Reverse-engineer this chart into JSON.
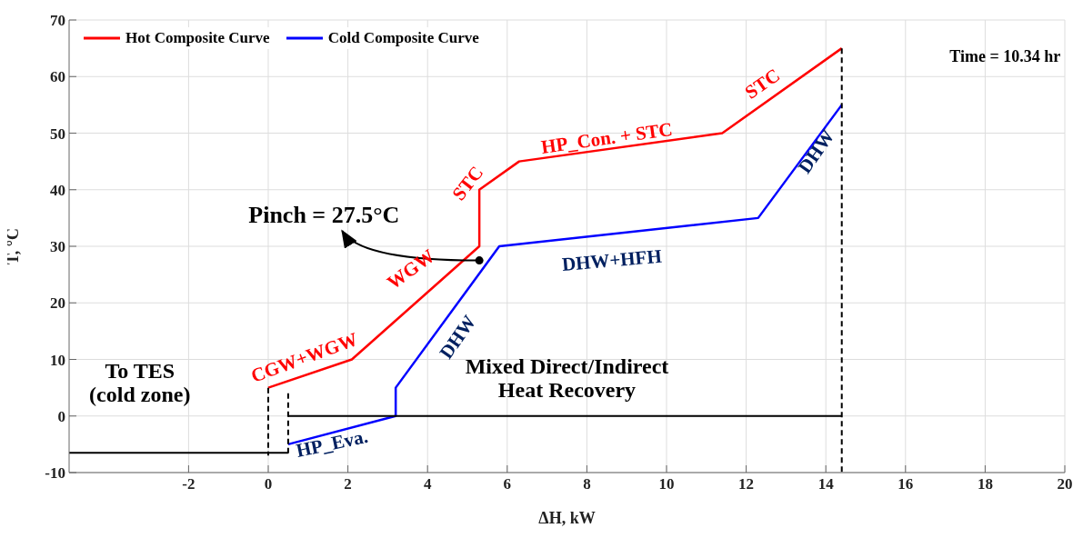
{
  "chart_data": {
    "type": "line",
    "xlabel": "ΔH, kW",
    "ylabel": "T, °C",
    "xlim": [
      -5,
      20
    ],
    "xticks": [
      -2,
      0,
      2,
      4,
      6,
      8,
      10,
      12,
      14,
      16,
      18,
      20
    ],
    "ylim": [
      -10,
      70
    ],
    "yticks": [
      -10,
      0,
      10,
      20,
      30,
      40,
      50,
      60,
      70
    ],
    "grid": true,
    "legend": "top left",
    "line_style": "solid",
    "series": [
      {
        "name": "Hot Composite Curve",
        "color": "#ff0000",
        "x": [
          0,
          2.1,
          5.3,
          5.3,
          6.3,
          11.4,
          14.4
        ],
        "values": [
          5,
          10,
          30,
          40,
          45,
          50,
          65
        ]
      },
      {
        "name": "Cold Composite Curve",
        "color": "#0000ff",
        "x": [
          0.5,
          3.2,
          3.2,
          5.8,
          12.3,
          14.4
        ],
        "values": [
          -5,
          0,
          5,
          30,
          35,
          55
        ]
      },
      {
        "color": "#000000",
        "line_style": "dashed",
        "x": [
          0,
          0
        ],
        "values": [
          5,
          -7
        ]
      },
      {
        "color": "#000000",
        "line_style": "dashed",
        "x": [
          0.5,
          0.5
        ],
        "values": [
          4,
          -7
        ]
      },
      {
        "color": "#000000",
        "line_style": "dashed",
        "x": [
          14.4,
          14.4
        ],
        "values": [
          65,
          -10
        ]
      },
      {
        "color": "#000000",
        "x": [
          0.5,
          14.4
        ],
        "values": [
          0,
          0
        ]
      },
      {
        "color": "#000000",
        "x": [
          -5,
          0.5
        ],
        "values": [
          -6.5,
          -6.5
        ]
      },
      {
        "type": "scatter",
        "marker": "circle",
        "color": "#000000",
        "x": [
          5.3
        ],
        "values": [
          27.5
        ]
      }
    ],
    "annotations": [
      "Pinch = 27.5°C",
      "STC",
      "HP_Con. + STC",
      "STC",
      "WGW",
      "CGW+WGW",
      "DHW",
      "DHW+HFH",
      "DHW",
      "HP_Eva.",
      "Mixed Direct/Indirect\nHeat Recovery",
      "To TES\n(cold zone)",
      "Time = 10.34 hr"
    ]
  }
}
